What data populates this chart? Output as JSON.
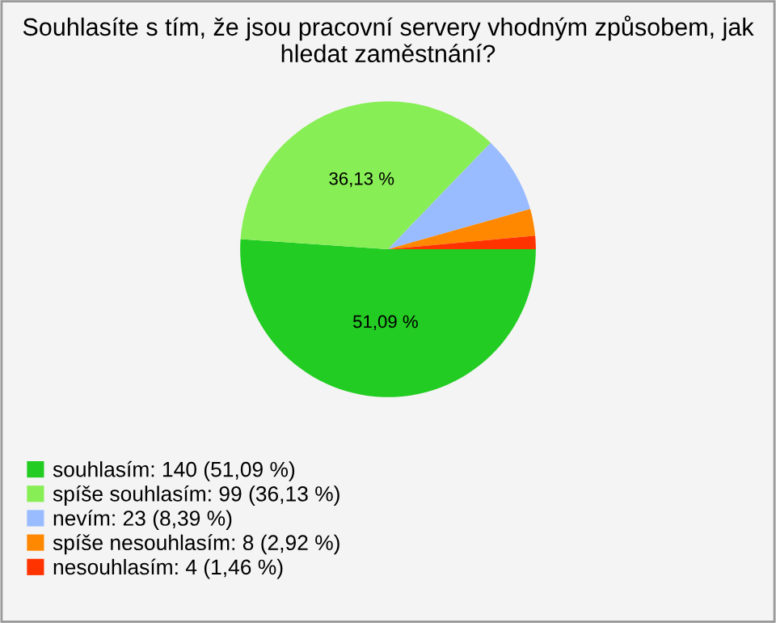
{
  "chart_data": {
    "type": "pie",
    "title": "Souhlasíte s tím, že jsou pracovní servery vhodným způsobem, jak hledat zaměstnání?",
    "categories": [
      "souhlasím: 140 (51,09 %)",
      "spíše souhlasím: 99 (36,13 %)",
      "nevím: 23 (8,39 %)",
      "spíše nesouhlasím: 8 (2,92 %)",
      "nesouhlasím: 4 (1,46 %)"
    ],
    "values": [
      51.09,
      36.13,
      8.39,
      2.92,
      1.46
    ],
    "colors": [
      "#22cc22",
      "#88ee55",
      "#99bbff",
      "#ff8800",
      "#ff3300"
    ],
    "value_labels": [
      "51,09 %",
      "36,13 %",
      null,
      null,
      null
    ],
    "legend": "bottom left"
  }
}
